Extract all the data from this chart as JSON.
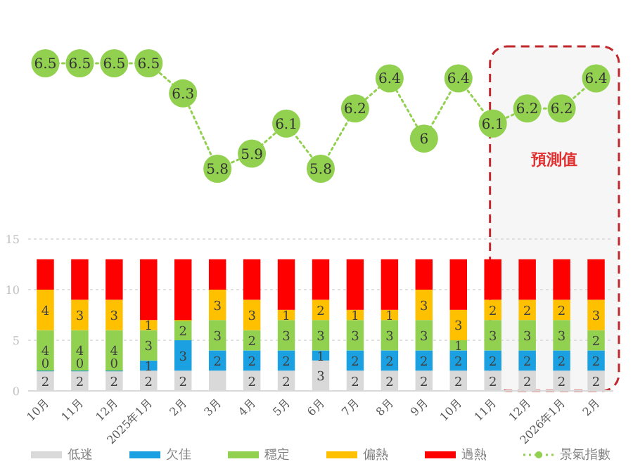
{
  "chart_data": [
    {
      "type": "line",
      "categories": [
        null,
        null,
        null,
        null,
        null,
        null,
        null,
        null,
        null,
        null,
        null,
        null,
        null,
        null,
        null,
        null,
        null
      ],
      "series": [
        {
          "name": "景氣指數",
          "color": "#92d050",
          "values": [
            6.5,
            6.5,
            6.5,
            6.5,
            6.3,
            5.8,
            5.9,
            6.1,
            5.8,
            6.2,
            6.4,
            6.0,
            6.4,
            6.1,
            6.2,
            6.2,
            6.4
          ]
        }
      ],
      "marker": "circle",
      "line_style": "dotted",
      "data_labels": true,
      "legend": "bottom",
      "annotations": [
        "預測值"
      ]
    },
    {
      "type": "bar",
      "stacked": true,
      "categories": [
        "10月",
        "11月",
        "12月",
        "2025年1月",
        "2月",
        "3月",
        "4月",
        "5月",
        "6月",
        "7月",
        "8月",
        "9月",
        "10月",
        "11月",
        "12月",
        "2026年1月",
        "2月"
      ],
      "series": [
        {
          "name": "低迷",
          "color": "#d9d9d9",
          "values": [
            2,
            2,
            2,
            2,
            2,
            2,
            2,
            2,
            3,
            2,
            2,
            2,
            2,
            2,
            2,
            2,
            2
          ],
          "value_labels": [
            "2",
            "2",
            "2",
            "2",
            "2",
            null,
            "2",
            "2",
            "3",
            "2",
            "2",
            "2",
            "2",
            "2",
            "2",
            "2",
            "2"
          ]
        },
        {
          "name": "欠佳",
          "color": "#1ba1e2",
          "values": [
            0,
            0,
            0,
            1,
            3,
            2,
            2,
            2,
            1,
            2,
            2,
            2,
            2,
            2,
            2,
            2,
            2
          ],
          "value_labels": [
            "0",
            "0",
            "0",
            "1",
            "3",
            "2",
            "2",
            "2",
            "1",
            "2",
            "2",
            "2",
            "2",
            "2",
            "2",
            "2",
            "2"
          ]
        },
        {
          "name": "穩定",
          "color": "#92d050",
          "values": [
            4,
            4,
            4,
            3,
            2,
            3,
            2,
            3,
            3,
            3,
            3,
            3,
            1,
            3,
            3,
            3,
            2
          ],
          "value_labels": [
            "4",
            "4",
            "4",
            "3",
            "2",
            "3",
            "2",
            "3",
            "3",
            "3",
            "3",
            "3",
            "1",
            "3",
            "3",
            "3",
            "2"
          ]
        },
        {
          "name": "偏熱",
          "color": "#ffc000",
          "values": [
            4,
            3,
            3,
            1,
            0,
            3,
            3,
            1,
            2,
            1,
            1,
            3,
            3,
            2,
            2,
            2,
            3
          ],
          "value_labels": [
            "4",
            "3",
            "3",
            "1",
            null,
            "3",
            "3",
            "1",
            "2",
            "1",
            "1",
            "3",
            "3",
            "2",
            "2",
            "2",
            "3"
          ]
        },
        {
          "name": "過熱",
          "color": "#ff0000",
          "values": [
            3,
            4,
            4,
            6,
            6,
            3,
            4,
            5,
            4,
            5,
            5,
            3,
            5,
            4,
            4,
            4,
            4
          ]
        }
      ],
      "ylim": [
        0,
        15
      ],
      "yticks": [
        0,
        5,
        10,
        15
      ],
      "grid": "y",
      "legend": "bottom"
    }
  ]
}
